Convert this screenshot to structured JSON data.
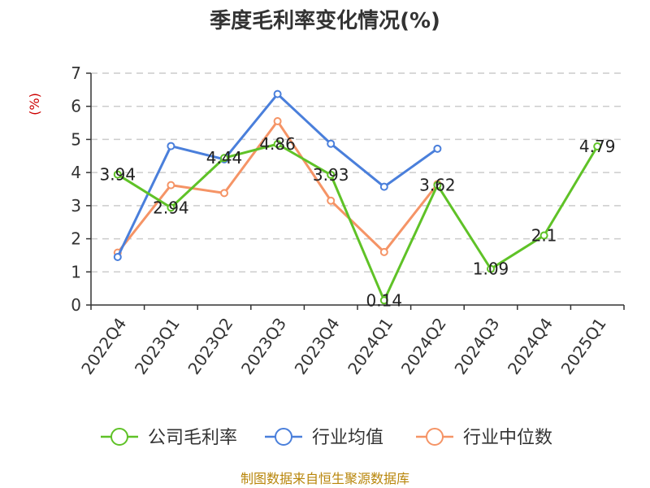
{
  "chart_data": {
    "type": "line",
    "title": "季度毛利率变化情况(%)",
    "ylabel": "(%)",
    "ylim": [
      0,
      7
    ],
    "yticks": [
      0,
      1,
      2,
      3,
      4,
      5,
      6,
      7
    ],
    "grid": "horizontal-dashed",
    "categories": [
      "2022Q4",
      "2023Q1",
      "2023Q2",
      "2023Q3",
      "2023Q4",
      "2024Q1",
      "2024Q2",
      "2024Q3",
      "2024Q4",
      "2025Q1"
    ],
    "series": [
      {
        "name": "公司毛利率",
        "color": "#5fc227",
        "values": [
          3.94,
          2.94,
          4.44,
          4.86,
          3.93,
          0.14,
          3.62,
          1.09,
          2.1,
          4.79
        ],
        "labels": [
          "3.94",
          "2.94",
          "4.44",
          "4.86",
          "3.93",
          "0.14",
          "3.62",
          "1.09",
          "2.1",
          "4.79"
        ]
      },
      {
        "name": "行业均值",
        "color": "#4a7fdb",
        "values": [
          1.45,
          4.8,
          4.4,
          6.37,
          4.87,
          3.57,
          4.72,
          null,
          null,
          null
        ]
      },
      {
        "name": "行业中位数",
        "color": "#f59466",
        "values": [
          1.58,
          3.62,
          3.38,
          5.55,
          3.15,
          1.6,
          3.65,
          null,
          null,
          null
        ]
      }
    ],
    "legend_position": "bottom"
  },
  "source": "制图数据来自恒生聚源数据库"
}
